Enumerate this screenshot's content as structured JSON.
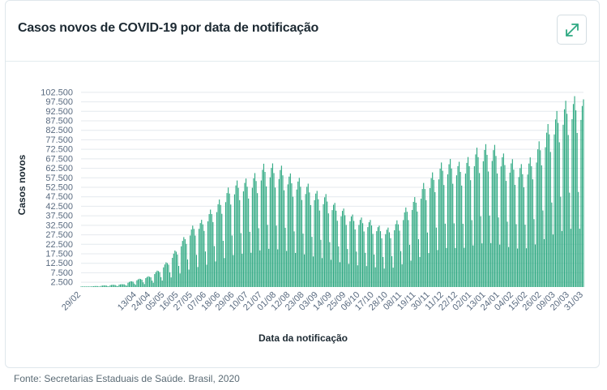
{
  "header": {
    "title": "Casos novos de COVID-19 por data de notificação",
    "expand_icon": "expand-arrows-icon"
  },
  "footer": {
    "source": "Fonte: Secretarias Estaduais de Saúde. Brasil, 2020"
  },
  "colors": {
    "bar": "#2fa982",
    "grid": "#e4e9ee",
    "tick": "#5a6b80",
    "axis_title": "#1d2a33"
  },
  "chart_data": {
    "type": "bar",
    "xlabel": "Data da notificação",
    "ylabel": "Casos novos",
    "ylim": [
      0,
      105000
    ],
    "grid": true,
    "y_ticks": [
      2500,
      7500,
      12500,
      17500,
      22500,
      27500,
      32500,
      37500,
      42500,
      47500,
      52500,
      57500,
      62500,
      67500,
      72500,
      77500,
      82500,
      87500,
      92500,
      97500,
      102500
    ],
    "y_tick_labels": [
      "2.500",
      "7.500",
      "12.500",
      "17.500",
      "22.500",
      "27.500",
      "32.500",
      "37.500",
      "42.500",
      "47.500",
      "52.500",
      "57.500",
      "62.500",
      "67.500",
      "72.500",
      "77.500",
      "82.500",
      "87.500",
      "92.500",
      "97.500",
      "102.500"
    ],
    "x_tick_labels": [
      "29/02",
      "13/04",
      "24/04",
      "05/05",
      "16/05",
      "27/05",
      "07/06",
      "18/06",
      "29/06",
      "10/07",
      "21/07",
      "01/08",
      "12/08",
      "23/08",
      "03/09",
      "14/09",
      "25/09",
      "06/10",
      "17/10",
      "28/10",
      "08/11",
      "19/11",
      "30/11",
      "11/12",
      "22/12",
      "02/01",
      "13/01",
      "24/01",
      "04/02",
      "15/02",
      "26/02",
      "09/03",
      "20/03",
      "31/03"
    ],
    "x_tick_dates": [
      "2020-02-29",
      "2020-04-13",
      "2020-04-24",
      "2020-05-05",
      "2020-05-16",
      "2020-05-27",
      "2020-06-07",
      "2020-06-18",
      "2020-06-29",
      "2020-07-10",
      "2020-07-21",
      "2020-08-01",
      "2020-08-12",
      "2020-08-23",
      "2020-09-03",
      "2020-09-14",
      "2020-09-25",
      "2020-10-06",
      "2020-10-17",
      "2020-10-28",
      "2020-11-08",
      "2020-11-19",
      "2020-11-30",
      "2020-12-11",
      "2020-12-22",
      "2021-01-02",
      "2021-01-13",
      "2021-01-24",
      "2021-02-04",
      "2021-02-15",
      "2021-02-26",
      "2021-03-09",
      "2021-03-20",
      "2021-03-31"
    ],
    "x": [
      "2020-04-02",
      "2020-04-09",
      "2020-04-16",
      "2020-04-23",
      "2020-04-30",
      "2020-05-07",
      "2020-05-14",
      "2020-05-21",
      "2020-05-28",
      "2020-06-04",
      "2020-06-11",
      "2020-06-18",
      "2020-06-25",
      "2020-07-02",
      "2020-07-09",
      "2020-07-16",
      "2020-07-23",
      "2020-07-30",
      "2020-08-06",
      "2020-08-13",
      "2020-08-20",
      "2020-08-27",
      "2020-09-03",
      "2020-09-10",
      "2020-09-17",
      "2020-09-24",
      "2020-10-01",
      "2020-10-08",
      "2020-10-15",
      "2020-10-22",
      "2020-10-29",
      "2020-11-05",
      "2020-11-12",
      "2020-11-19",
      "2020-11-26",
      "2020-12-03",
      "2020-12-10",
      "2020-12-17",
      "2020-12-24",
      "2020-12-31",
      "2021-01-07",
      "2021-01-14",
      "2021-01-21",
      "2021-01-28",
      "2021-02-04",
      "2021-02-11",
      "2021-02-18",
      "2021-02-25",
      "2021-03-04",
      "2021-03-11",
      "2021-03-18",
      "2021-03-25",
      "2021-03-31"
    ],
    "values": [
      1200,
      2500,
      3500,
      4500,
      7000,
      10500,
      15500,
      21000,
      25500,
      27500,
      32000,
      36000,
      41000,
      43500,
      44000,
      46500,
      50500,
      50000,
      49000,
      45500,
      44000,
      41500,
      38500,
      37500,
      33500,
      31500,
      29000,
      28000,
      27000,
      24500,
      24000,
      27500,
      33000,
      37000,
      43000,
      47000,
      51000,
      52000,
      50500,
      53000,
      57000,
      58000,
      57500,
      53500,
      51500,
      49500,
      53000,
      60000,
      67000,
      72000,
      76000,
      77500,
      76000
    ]
  }
}
